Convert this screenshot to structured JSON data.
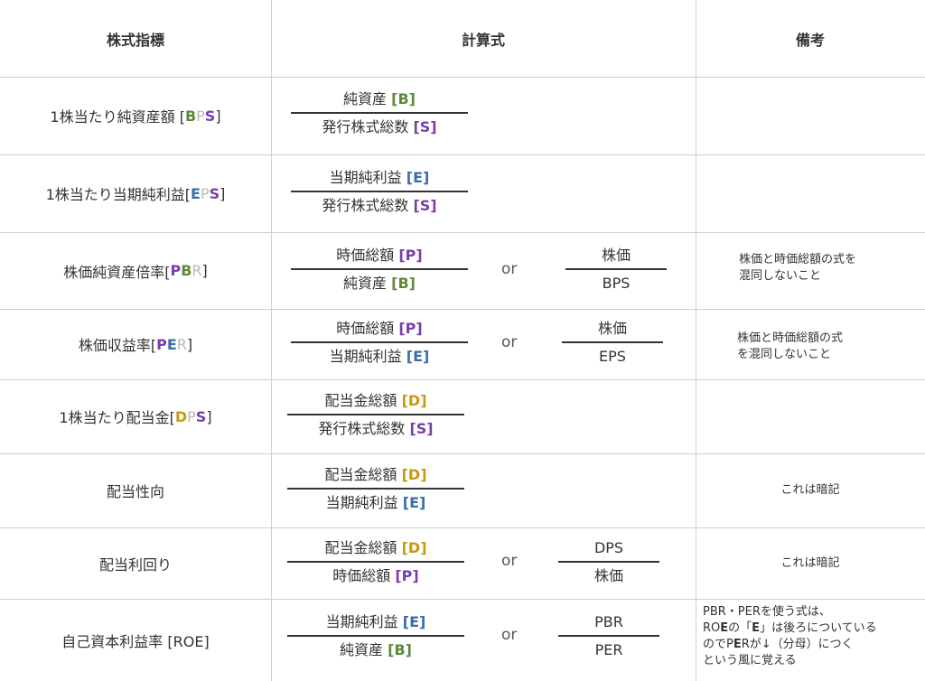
{
  "header": {
    "col1": "株式指標",
    "col2": "計算式",
    "col3": "備考"
  },
  "or_label": "or",
  "rows": [
    {
      "name": "1株当たり純資産額 [",
      "name_letters": [
        "B",
        "P",
        "S"
      ],
      "name_end": "]",
      "num_text": "純資産 ",
      "num_tag": "[B]",
      "den_text": "発行株式総数 ",
      "den_tag": "[S]"
    },
    {
      "name": "1株当たり当期純利益[",
      "name_letters": [
        "E",
        "P",
        "S"
      ],
      "name_end": "]",
      "num_text": "当期純利益 ",
      "num_tag": "[E]",
      "den_text": "発行株式総数 ",
      "den_tag": "[S]"
    },
    {
      "name": "株価純資産倍率[",
      "name_letters": [
        "P",
        "B",
        "R"
      ],
      "name_end": "]",
      "num_text": "時価総額 ",
      "num_tag": "[P]",
      "den_text": "純資産 ",
      "den_tag": "[B]",
      "alt_num": "株価",
      "alt_den": "BPS",
      "note": [
        "株価と時価総額の式を",
        "混同しないこと"
      ]
    },
    {
      "name": "株価収益率[",
      "name_letters": [
        "P",
        "E",
        "R"
      ],
      "name_end": "]",
      "num_text": "時価総額 ",
      "num_tag": "[P]",
      "den_text": "当期純利益 ",
      "den_tag": "[E]",
      "alt_num": "株価",
      "alt_den": "EPS",
      "note": [
        "株価と時価総額の式",
        "を混同しないこと"
      ]
    },
    {
      "name": "1株当たり配当金[",
      "name_letters": [
        "D",
        "P",
        "S"
      ],
      "name_end": "]",
      "num_text": "配当金総額 ",
      "num_tag": "[D]",
      "den_text": "発行株式総数 ",
      "den_tag": "[S]"
    },
    {
      "name": "配当性向",
      "num_text": "配当金総額 ",
      "num_tag": "[D]",
      "den_text": "当期純利益 ",
      "den_tag": "[E]",
      "note": [
        "これは暗記"
      ]
    },
    {
      "name": "配当利回り",
      "num_text": "配当金総額 ",
      "num_tag": "[D]",
      "den_text": "時価総額 ",
      "den_tag": "[P]",
      "alt_num": "DPS",
      "alt_den": "株価",
      "note": [
        "これは暗記"
      ]
    },
    {
      "name": "自己資本利益率 [ROE]",
      "num_text": "当期純利益 ",
      "num_tag": "[E]",
      "den_text": "純資産 ",
      "den_tag": "[B]",
      "alt_num": "PBR",
      "alt_den": "PER",
      "note_rich": {
        "l1": "PBR・PERを使う式は、",
        "l2a": "RO",
        "l2b": "E",
        "l2c": "の「",
        "l2d": "E",
        "l2e": "」は後ろについている",
        "l3a": "のでP",
        "l3b": "E",
        "l3c": "Rが↓（分母）につく",
        "l4": "という風に覚える"
      }
    }
  ]
}
